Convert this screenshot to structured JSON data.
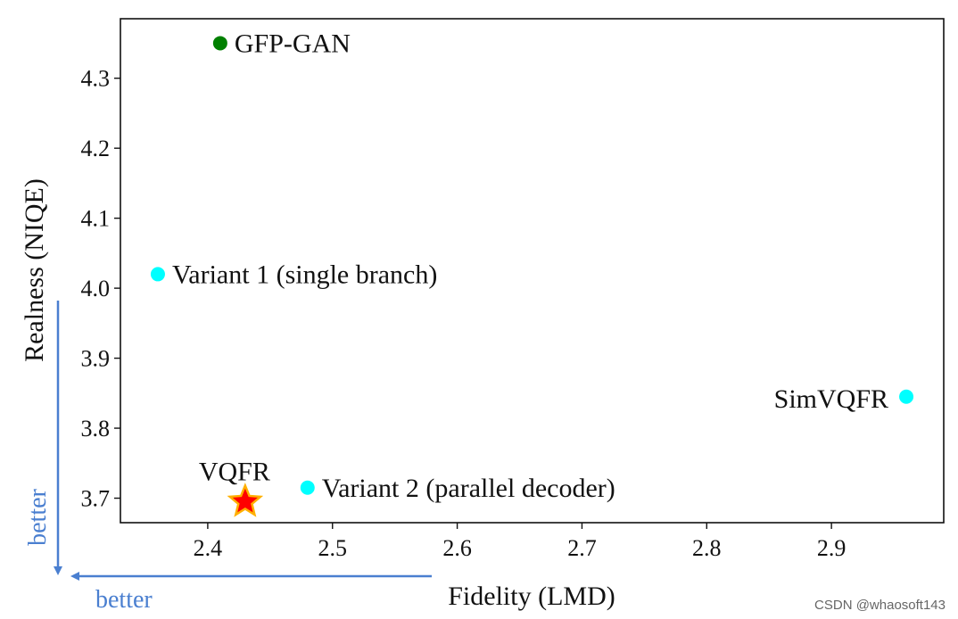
{
  "chart_data": {
    "type": "scatter",
    "title": "",
    "xlabel": "Fidelity (LMD)",
    "ylabel": "Realness (NIQE)",
    "xlim": [
      2.33,
      2.99
    ],
    "ylim": [
      3.665,
      4.385
    ],
    "xticks": [
      "2.4",
      "2.5",
      "2.6",
      "2.7",
      "2.8",
      "2.9"
    ],
    "xtick_values": [
      2.4,
      2.5,
      2.6,
      2.7,
      2.8,
      2.9
    ],
    "yticks": [
      "3.7",
      "3.8",
      "3.9",
      "4.0",
      "4.1",
      "4.2",
      "4.3"
    ],
    "ytick_values": [
      3.7,
      3.8,
      3.9,
      4.0,
      4.1,
      4.2,
      4.3
    ],
    "grid": false,
    "points": [
      {
        "name": "GFP-GAN",
        "x": 2.41,
        "y": 4.35,
        "color": "#008000",
        "marker": "circle",
        "label_side": "right"
      },
      {
        "name": "Variant 1 (single branch)",
        "x": 2.36,
        "y": 4.02,
        "color": "#00FFFF",
        "marker": "circle",
        "label_side": "right"
      },
      {
        "name": "SimVQFR",
        "x": 2.96,
        "y": 3.845,
        "color": "#00FFFF",
        "marker": "circle",
        "label_side": "left"
      },
      {
        "name": "Variant 2 (parallel decoder)",
        "x": 2.48,
        "y": 3.715,
        "color": "#00FFFF",
        "marker": "circle",
        "label_side": "right"
      },
      {
        "name": "VQFR",
        "x": 2.43,
        "y": 3.695,
        "color": "#FF0000",
        "edge_color": "#FFB000",
        "marker": "star",
        "label_side": "top"
      }
    ],
    "annotations": {
      "better_x": "better",
      "better_y": "better",
      "arrow_color": "#4A7FD0"
    }
  },
  "watermark": "CSDN @whaosoft143"
}
